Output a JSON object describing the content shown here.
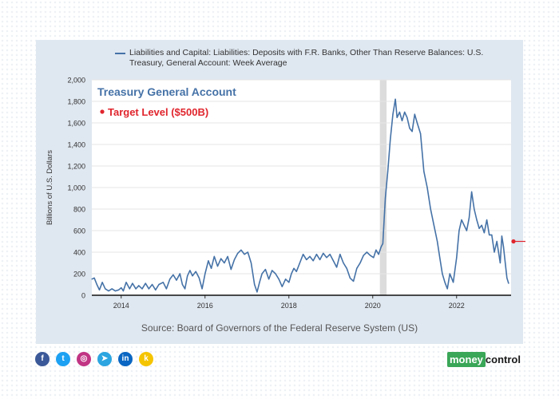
{
  "legend": {
    "text": "Liabilities and Capital: Liabilities: Deposits with F.R. Banks, Other Than Reserve Balances: U.S. Treasury, General Account: Week Average",
    "color": "#4572a7"
  },
  "annotations": {
    "title": "Treasury General Account",
    "target_label": "Target Level ($500B)",
    "target_color": "#e0252d",
    "title_color": "#4572a7"
  },
  "source": "Source: Board of Governors of the Federal Reserve System (US)",
  "social": {
    "icons": [
      "facebook-icon",
      "twitter-icon",
      "instagram-icon",
      "telegram-icon",
      "linkedin-icon",
      "koo-icon"
    ],
    "glyphs": [
      "f",
      "t",
      "◎",
      "➤",
      "in",
      "k"
    ],
    "colors": [
      "#3b5998",
      "#1da1f2",
      "#c13584",
      "#2ca5e0",
      "#0a66c2",
      "#f5c400"
    ]
  },
  "brand": {
    "part1": "money",
    "part2": "control"
  },
  "chart_data": {
    "type": "line",
    "xlabel": "",
    "ylabel": "Billions of U.S. Dollars",
    "xlim": [
      2013.3,
      2023.3
    ],
    "ylim": [
      0,
      2000
    ],
    "x_ticks": [
      2014,
      2016,
      2018,
      2020,
      2022
    ],
    "x_tick_labels": [
      "2014",
      "2016",
      "2018",
      "2020",
      "2022"
    ],
    "y_ticks": [
      0,
      200,
      400,
      600,
      800,
      1000,
      1200,
      1400,
      1600,
      1800,
      2000
    ],
    "y_tick_labels": [
      "0",
      "200",
      "400",
      "600",
      "800",
      "1,000",
      "1,200",
      "1,400",
      "1,600",
      "1,800",
      "2,000"
    ],
    "grid": true,
    "recession_band": [
      2020.17,
      2020.33
    ],
    "target_level": 500,
    "series": [
      {
        "name": "Liabilities and Capital: Liabilities: Deposits with F.R. Banks, Other Than Reserve Balances: U.S. Treasury, General Account: Week Average",
        "points": [
          [
            2013.3,
            150
          ],
          [
            2013.36,
            160
          ],
          [
            2013.42,
            100
          ],
          [
            2013.48,
            50
          ],
          [
            2013.55,
            120
          ],
          [
            2013.62,
            60
          ],
          [
            2013.7,
            40
          ],
          [
            2013.78,
            60
          ],
          [
            2013.86,
            40
          ],
          [
            2013.94,
            50
          ],
          [
            2014.0,
            70
          ],
          [
            2014.05,
            40
          ],
          [
            2014.12,
            120
          ],
          [
            2014.2,
            60
          ],
          [
            2014.27,
            110
          ],
          [
            2014.35,
            60
          ],
          [
            2014.42,
            90
          ],
          [
            2014.5,
            60
          ],
          [
            2014.58,
            110
          ],
          [
            2014.66,
            60
          ],
          [
            2014.74,
            100
          ],
          [
            2014.82,
            50
          ],
          [
            2014.9,
            100
          ],
          [
            2015.0,
            120
          ],
          [
            2015.08,
            60
          ],
          [
            2015.16,
            150
          ],
          [
            2015.24,
            190
          ],
          [
            2015.32,
            140
          ],
          [
            2015.4,
            200
          ],
          [
            2015.46,
            100
          ],
          [
            2015.52,
            60
          ],
          [
            2015.58,
            180
          ],
          [
            2015.64,
            230
          ],
          [
            2015.7,
            180
          ],
          [
            2015.78,
            220
          ],
          [
            2015.86,
            160
          ],
          [
            2015.93,
            60
          ],
          [
            2016.0,
            200
          ],
          [
            2016.08,
            320
          ],
          [
            2016.15,
            250
          ],
          [
            2016.22,
            360
          ],
          [
            2016.3,
            270
          ],
          [
            2016.38,
            340
          ],
          [
            2016.46,
            300
          ],
          [
            2016.54,
            360
          ],
          [
            2016.62,
            240
          ],
          [
            2016.7,
            330
          ],
          [
            2016.78,
            390
          ],
          [
            2016.86,
            420
          ],
          [
            2016.94,
            380
          ],
          [
            2017.02,
            400
          ],
          [
            2017.1,
            300
          ],
          [
            2017.18,
            100
          ],
          [
            2017.24,
            30
          ],
          [
            2017.3,
            120
          ],
          [
            2017.36,
            200
          ],
          [
            2017.44,
            240
          ],
          [
            2017.52,
            150
          ],
          [
            2017.6,
            230
          ],
          [
            2017.68,
            200
          ],
          [
            2017.76,
            150
          ],
          [
            2017.84,
            80
          ],
          [
            2017.92,
            150
          ],
          [
            2018.0,
            120
          ],
          [
            2018.06,
            200
          ],
          [
            2018.12,
            250
          ],
          [
            2018.18,
            220
          ],
          [
            2018.26,
            300
          ],
          [
            2018.34,
            380
          ],
          [
            2018.42,
            330
          ],
          [
            2018.5,
            360
          ],
          [
            2018.58,
            320
          ],
          [
            2018.66,
            380
          ],
          [
            2018.74,
            330
          ],
          [
            2018.82,
            390
          ],
          [
            2018.9,
            350
          ],
          [
            2018.98,
            380
          ],
          [
            2019.06,
            320
          ],
          [
            2019.14,
            260
          ],
          [
            2019.22,
            380
          ],
          [
            2019.3,
            300
          ],
          [
            2019.38,
            250
          ],
          [
            2019.46,
            160
          ],
          [
            2019.54,
            130
          ],
          [
            2019.62,
            250
          ],
          [
            2019.7,
            300
          ],
          [
            2019.78,
            370
          ],
          [
            2019.86,
            400
          ],
          [
            2019.94,
            370
          ],
          [
            2020.02,
            350
          ],
          [
            2020.08,
            420
          ],
          [
            2020.14,
            380
          ],
          [
            2020.2,
            450
          ],
          [
            2020.24,
            480
          ],
          [
            2020.3,
            900
          ],
          [
            2020.36,
            1150
          ],
          [
            2020.42,
            1450
          ],
          [
            2020.48,
            1680
          ],
          [
            2020.54,
            1820
          ],
          [
            2020.58,
            1650
          ],
          [
            2020.64,
            1700
          ],
          [
            2020.7,
            1620
          ],
          [
            2020.76,
            1700
          ],
          [
            2020.82,
            1650
          ],
          [
            2020.88,
            1550
          ],
          [
            2020.94,
            1520
          ],
          [
            2021.0,
            1680
          ],
          [
            2021.06,
            1600
          ],
          [
            2021.14,
            1500
          ],
          [
            2021.22,
            1150
          ],
          [
            2021.3,
            1000
          ],
          [
            2021.38,
            800
          ],
          [
            2021.46,
            650
          ],
          [
            2021.54,
            500
          ],
          [
            2021.6,
            350
          ],
          [
            2021.66,
            200
          ],
          [
            2021.72,
            120
          ],
          [
            2021.78,
            60
          ],
          [
            2021.84,
            200
          ],
          [
            2021.92,
            120
          ],
          [
            2022.0,
            350
          ],
          [
            2022.06,
            600
          ],
          [
            2022.12,
            700
          ],
          [
            2022.18,
            650
          ],
          [
            2022.24,
            600
          ],
          [
            2022.3,
            720
          ],
          [
            2022.36,
            960
          ],
          [
            2022.42,
            800
          ],
          [
            2022.48,
            700
          ],
          [
            2022.54,
            620
          ],
          [
            2022.6,
            650
          ],
          [
            2022.66,
            580
          ],
          [
            2022.72,
            700
          ],
          [
            2022.78,
            560
          ],
          [
            2022.84,
            560
          ],
          [
            2022.9,
            400
          ],
          [
            2022.96,
            500
          ],
          [
            2023.0,
            400
          ],
          [
            2023.04,
            300
          ],
          [
            2023.08,
            550
          ],
          [
            2023.12,
            450
          ],
          [
            2023.16,
            300
          ],
          [
            2023.2,
            160
          ],
          [
            2023.24,
            110
          ]
        ]
      }
    ]
  }
}
